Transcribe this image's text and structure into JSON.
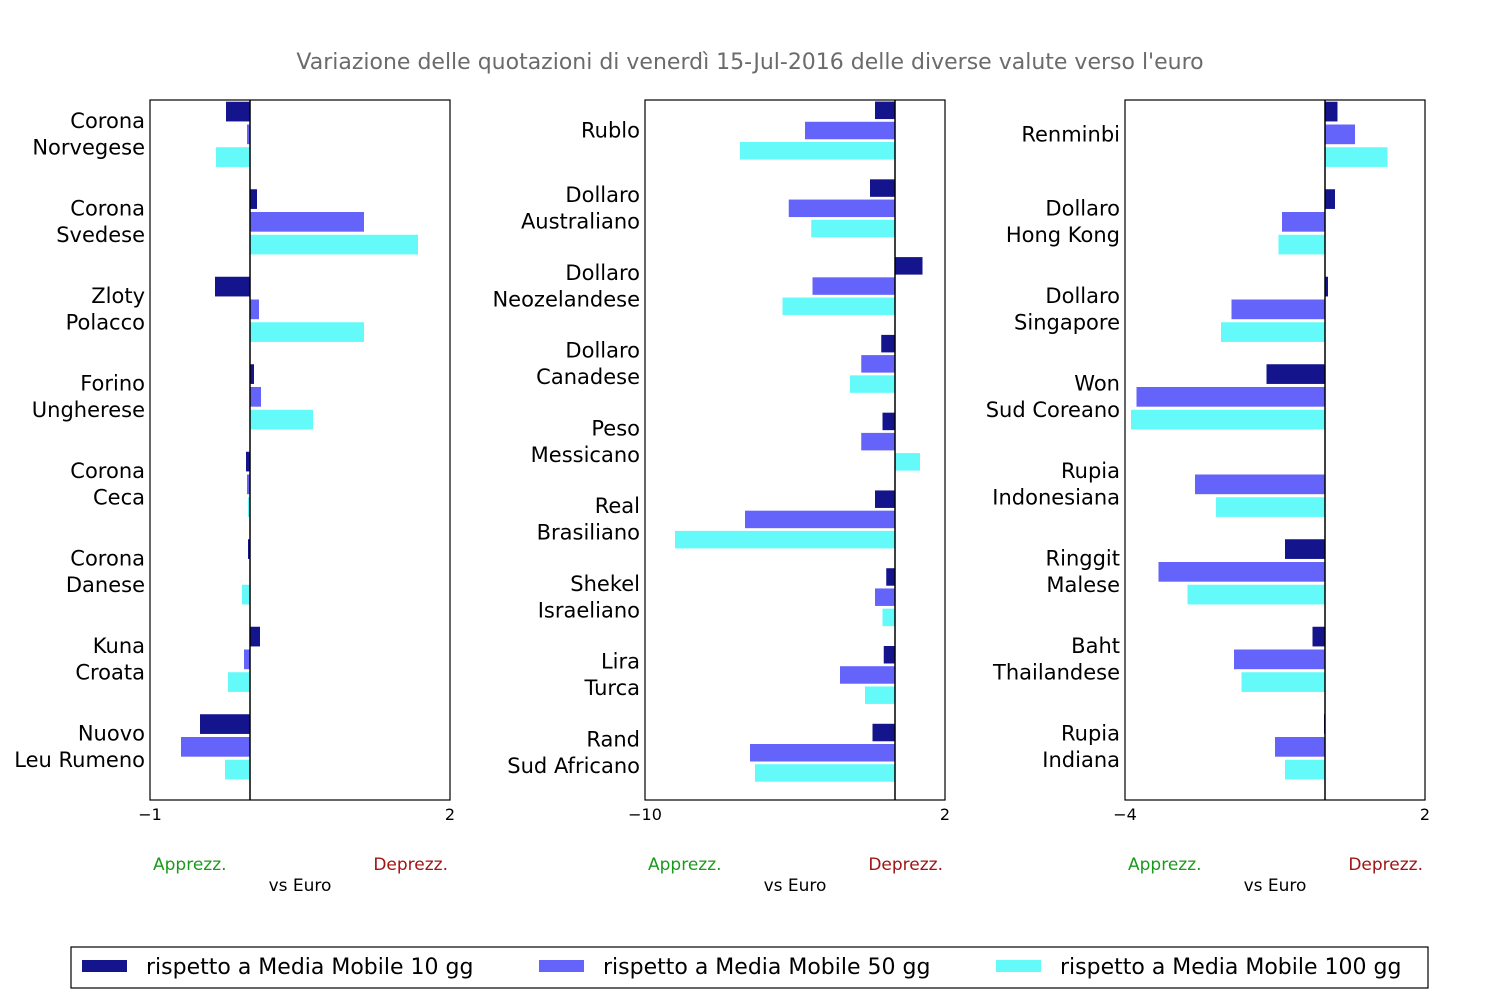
{
  "chart_data": {
    "type": "bar",
    "title": "Variazione delle quotazioni di venerdì 15-Jul-2016 delle diverse valute verso l'euro",
    "colors": {
      "ma10": "#14148c",
      "ma50": "#6464fa",
      "ma100": "#64fafa",
      "apprezz": "#1a9a1a",
      "deprezz": "#a01414",
      "title": "#6b6b6b"
    },
    "legend": {
      "placement": "bottom",
      "labels": [
        "rispetto a Media Mobile 10 gg",
        "rispetto a Media Mobile 50 gg",
        "rispetto a Media Mobile 100 gg"
      ]
    },
    "panels": [
      {
        "xlim": [
          -1,
          2
        ],
        "xticks": [
          "−1",
          "2"
        ],
        "xlabel": "vs Euro",
        "left_note": "Apprezz.",
        "right_note": "Deprezz.",
        "categories": [
          [
            "Corona",
            "Norvegese"
          ],
          [
            "Corona",
            "Svedese"
          ],
          [
            "Zloty",
            "Polacco"
          ],
          [
            "Forino",
            "Ungherese"
          ],
          [
            "Corona",
            "Ceca"
          ],
          [
            "Corona",
            "Danese"
          ],
          [
            "Kuna",
            "Croata"
          ],
          [
            "Nuovo",
            "Leu Rumeno"
          ]
        ],
        "series": [
          {
            "name": "rispetto a Media Mobile 10 gg",
            "values": [
              -0.24,
              0.07,
              -0.35,
              0.04,
              -0.04,
              -0.02,
              0.1,
              -0.5
            ]
          },
          {
            "name": "rispetto a Media Mobile 50 gg",
            "values": [
              -0.03,
              1.14,
              0.09,
              0.11,
              -0.03,
              0.0,
              -0.06,
              -0.69
            ]
          },
          {
            "name": "rispetto a Media Mobile 100 gg",
            "values": [
              -0.34,
              1.68,
              1.14,
              0.63,
              -0.02,
              -0.08,
              -0.22,
              -0.25
            ]
          }
        ]
      },
      {
        "xlim": [
          -10,
          2
        ],
        "xticks": [
          "−10",
          "2"
        ],
        "xlabel": "vs Euro",
        "left_note": "Apprezz.",
        "right_note": "Deprezz.",
        "categories": [
          [
            "Rublo"
          ],
          [
            "Dollaro",
            "Australiano"
          ],
          [
            "Dollaro",
            "Neozelandese"
          ],
          [
            "Dollaro",
            "Canadese"
          ],
          [
            "Peso",
            "Messicano"
          ],
          [
            "Real",
            "Brasiliano"
          ],
          [
            "Shekel",
            "Israeliano"
          ],
          [
            "Lira",
            "Turca"
          ],
          [
            "Rand",
            "Sud Africano"
          ]
        ],
        "series": [
          {
            "name": "rispetto a Media Mobile 10 gg",
            "values": [
              -0.8,
              -1.0,
              1.1,
              -0.55,
              -0.5,
              -0.8,
              -0.35,
              -0.45,
              -0.9
            ]
          },
          {
            "name": "rispetto a Media Mobile 50 gg",
            "values": [
              -3.6,
              -4.25,
              -3.3,
              -1.35,
              -1.35,
              -6.0,
              -0.8,
              -2.2,
              -5.8
            ]
          },
          {
            "name": "rispetto a Media Mobile 100 gg",
            "values": [
              -6.2,
              -3.35,
              -4.5,
              -1.8,
              1.0,
              -8.8,
              -0.5,
              -1.2,
              -5.6
            ]
          }
        ]
      },
      {
        "xlim": [
          -4,
          2
        ],
        "xticks": [
          "−4",
          "2"
        ],
        "xlabel": "vs Euro",
        "left_note": "Apprezz.",
        "right_note": "Deprezz.",
        "categories": [
          [
            "Renminbi"
          ],
          [
            "Dollaro",
            "Hong Kong"
          ],
          [
            "Dollaro",
            "Singapore"
          ],
          [
            "Won",
            "Sud Coreano"
          ],
          [
            "Rupia",
            "Indonesiana"
          ],
          [
            "Ringgit",
            "Malese"
          ],
          [
            "Baht",
            "Thailandese"
          ],
          [
            "Rupia",
            "Indiana"
          ]
        ],
        "series": [
          {
            "name": "rispetto a Media Mobile 10 gg",
            "values": [
              0.25,
              0.2,
              0.06,
              -1.17,
              0.0,
              -0.8,
              -0.25,
              -0.02
            ]
          },
          {
            "name": "rispetto a Media Mobile 50 gg",
            "values": [
              0.6,
              -0.86,
              -1.87,
              -3.77,
              -2.6,
              -3.33,
              -1.82,
              -1.0
            ]
          },
          {
            "name": "rispetto a Media Mobile 100 gg",
            "values": [
              1.25,
              -0.93,
              -2.08,
              -3.88,
              -2.18,
              -2.75,
              -1.67,
              -0.8
            ]
          }
        ]
      }
    ]
  }
}
